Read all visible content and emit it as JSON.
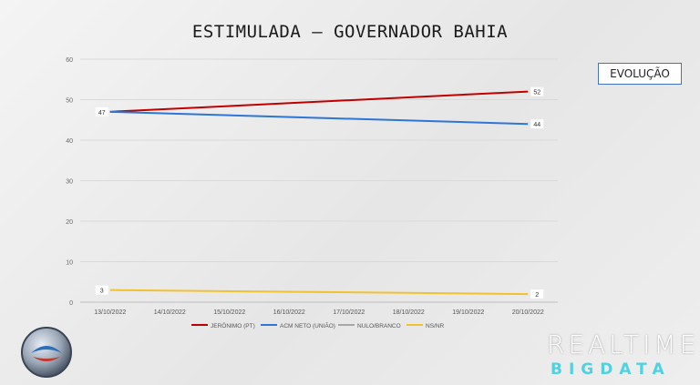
{
  "header": {
    "title": "ESTIMULADA – GOVERNADOR BAHIA",
    "tag": "EVOLUÇÃO"
  },
  "brand": {
    "line1": "REALTIME",
    "line2": "BIGDATA"
  },
  "chart_data": {
    "type": "line",
    "categories": [
      "13/10/2022",
      "14/10/2022",
      "15/10/2022",
      "16/10/2022",
      "17/10/2022",
      "18/10/2022",
      "19/10/2022",
      "20/10/2022"
    ],
    "ylim": [
      0,
      60
    ],
    "yticks": [
      0,
      10,
      20,
      30,
      40,
      50,
      60
    ],
    "grid": true,
    "legend_position": "bottom",
    "series": [
      {
        "name": "JERÔNIMO (PT)",
        "color": "#c00000",
        "points": [
          {
            "x": "13/10/2022",
            "y": 47
          },
          {
            "x": "20/10/2022",
            "y": 52
          }
        ],
        "labels": [
          {
            "x": "13/10/2022",
            "text": "47"
          },
          {
            "x": "20/10/2022",
            "text": "52"
          }
        ]
      },
      {
        "name": "ACM NETO (UNIÃO)",
        "color": "#2e75d6",
        "points": [
          {
            "x": "13/10/2022",
            "y": 47
          },
          {
            "x": "20/10/2022",
            "y": 44
          }
        ],
        "labels": [
          {
            "x": "20/10/2022",
            "text": "44"
          }
        ]
      },
      {
        "name": "NULO/BRANCO",
        "color": "#a6a6a6",
        "points": [],
        "labels": []
      },
      {
        "name": "NS/NR",
        "color": "#f2c12e",
        "points": [
          {
            "x": "13/10/2022",
            "y": 3
          },
          {
            "x": "20/10/2022",
            "y": 2
          }
        ],
        "labels": [
          {
            "x": "13/10/2022",
            "text": "3"
          },
          {
            "x": "20/10/2022",
            "text": "2"
          }
        ]
      }
    ]
  }
}
